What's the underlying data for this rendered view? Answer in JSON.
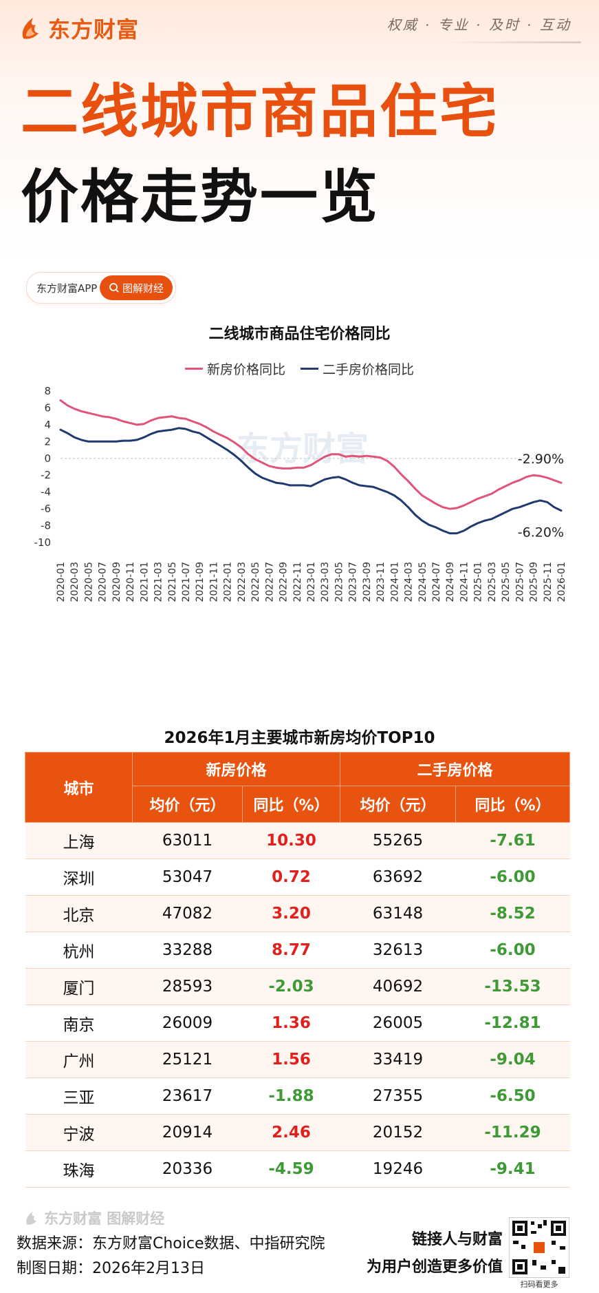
{
  "brand": {
    "name": "东方财富",
    "slogan": "权威 · 专业 · 及时 · 互动"
  },
  "title": {
    "line1": "二线城市商品住宅",
    "line2": "价格走势一览"
  },
  "pill": {
    "app": "东方财富APP",
    "tag": "图解财经"
  },
  "watermark": "东方财富",
  "chart_data": {
    "type": "line",
    "title": "二线城市商品住宅价格同比",
    "x": [
      "2020-01",
      "2020-02",
      "2020-03",
      "2020-04",
      "2020-05",
      "2020-06",
      "2020-07",
      "2020-08",
      "2020-09",
      "2020-10",
      "2020-11",
      "2020-12",
      "2021-01",
      "2021-02",
      "2021-03",
      "2021-04",
      "2021-05",
      "2021-06",
      "2021-07",
      "2021-08",
      "2021-09",
      "2021-10",
      "2021-11",
      "2021-12",
      "2022-01",
      "2022-02",
      "2022-03",
      "2022-04",
      "2022-05",
      "2022-06",
      "2022-07",
      "2022-08",
      "2022-09",
      "2022-10",
      "2022-11",
      "2022-12",
      "2023-01",
      "2023-02",
      "2023-03",
      "2023-04",
      "2023-05",
      "2023-06",
      "2023-07",
      "2023-08",
      "2023-09",
      "2023-10",
      "2023-11",
      "2023-12",
      "2024-01",
      "2024-02",
      "2024-03",
      "2024-04",
      "2024-05",
      "2024-06",
      "2024-07",
      "2024-08",
      "2024-09",
      "2024-10",
      "2024-11",
      "2024-12",
      "2025-01",
      "2025-02",
      "2025-03",
      "2025-04",
      "2025-05",
      "2025-06",
      "2025-07",
      "2025-08",
      "2025-09",
      "2025-10",
      "2025-11",
      "2025-12",
      "2026-01"
    ],
    "tick_labels": [
      "2020-01",
      "2020-03",
      "2020-05",
      "2020-07",
      "2020-09",
      "2020-11",
      "2021-01",
      "2021-03",
      "2021-05",
      "2021-07",
      "2021-09",
      "2021-11",
      "2022-01",
      "2022-03",
      "2022-05",
      "2022-07",
      "2022-09",
      "2022-11",
      "2023-01",
      "2023-03",
      "2023-05",
      "2023-07",
      "2023-09",
      "2023-11",
      "2024-01",
      "2024-03",
      "2024-05",
      "2024-07",
      "2024-09",
      "2024-11",
      "2025-01",
      "2025-03",
      "2025-05",
      "2025-07",
      "2025-09",
      "2025-11",
      "2026-01"
    ],
    "series": [
      {
        "name": "新房价格同比",
        "color": "#e0547a",
        "values": [
          6.9,
          6.3,
          5.9,
          5.6,
          5.4,
          5.2,
          5.0,
          4.9,
          4.7,
          4.4,
          4.2,
          4.0,
          4.1,
          4.5,
          4.8,
          4.9,
          5.0,
          4.8,
          4.7,
          4.4,
          4.1,
          3.7,
          3.2,
          2.8,
          2.4,
          1.9,
          1.3,
          0.5,
          -0.1,
          -0.5,
          -0.9,
          -1.1,
          -1.2,
          -1.2,
          -1.1,
          -1.1,
          -0.8,
          -0.3,
          0.2,
          0.5,
          0.5,
          0.2,
          0.3,
          0.2,
          0.3,
          0.2,
          0.1,
          -0.3,
          -1.0,
          -1.9,
          -2.7,
          -3.6,
          -4.4,
          -4.9,
          -5.4,
          -5.8,
          -6.0,
          -5.9,
          -5.6,
          -5.2,
          -4.8,
          -4.5,
          -4.2,
          -3.7,
          -3.3,
          -2.9,
          -2.6,
          -2.2,
          -2.0,
          -2.1,
          -2.3,
          -2.6,
          -2.9
        ]
      },
      {
        "name": "二手房价格同比",
        "color": "#1f3a6e",
        "values": [
          3.4,
          3.0,
          2.5,
          2.2,
          2.0,
          2.0,
          2.0,
          2.0,
          2.0,
          2.1,
          2.1,
          2.2,
          2.5,
          2.9,
          3.2,
          3.3,
          3.4,
          3.6,
          3.5,
          3.2,
          3.0,
          2.5,
          2.0,
          1.5,
          1.0,
          0.4,
          -0.3,
          -1.1,
          -1.8,
          -2.3,
          -2.6,
          -2.9,
          -3.0,
          -3.2,
          -3.2,
          -3.2,
          -3.3,
          -2.9,
          -2.5,
          -2.3,
          -2.2,
          -2.5,
          -2.9,
          -3.2,
          -3.3,
          -3.4,
          -3.7,
          -4.0,
          -4.4,
          -5.0,
          -5.8,
          -6.7,
          -7.4,
          -7.9,
          -8.2,
          -8.6,
          -8.9,
          -8.9,
          -8.6,
          -8.1,
          -7.7,
          -7.4,
          -7.2,
          -6.8,
          -6.4,
          -6.0,
          -5.8,
          -5.5,
          -5.2,
          -5.0,
          -5.2,
          -5.8,
          -6.2
        ]
      }
    ],
    "end_labels": [
      "-2.90%",
      "-6.20%"
    ],
    "ylim": [
      -10,
      8
    ],
    "yticks": [
      "8",
      "6",
      "4",
      "2",
      "0",
      "-2",
      "-4",
      "-6",
      "-8",
      "-10"
    ],
    "xlabel": "",
    "ylabel": "",
    "legend": "top-center",
    "grid": false
  },
  "table": {
    "title": "2026年1月主要城市新房均价TOP10",
    "headers": {
      "city": "城市",
      "new_group": "新房价格",
      "second_group": "二手房价格",
      "price": "均价（元）",
      "yoy": "同比（%）",
      "price2": "均价（元）",
      "yoy2": "同比（%）"
    },
    "rows": [
      [
        "上海",
        "63011",
        "10.30",
        "55265",
        "-7.61"
      ],
      [
        "深圳",
        "53047",
        "0.72",
        "63692",
        "-6.00"
      ],
      [
        "北京",
        "47082",
        "3.20",
        "63148",
        "-8.52"
      ],
      [
        "杭州",
        "33288",
        "8.77",
        "32613",
        "-6.00"
      ],
      [
        "厦门",
        "28593",
        "-2.03",
        "40692",
        "-13.53"
      ],
      [
        "南京",
        "26009",
        "1.36",
        "26005",
        "-12.81"
      ],
      [
        "广州",
        "25121",
        "1.56",
        "33419",
        "-9.04"
      ],
      [
        "三亚",
        "23617",
        "-1.88",
        "27355",
        "-6.50"
      ],
      [
        "宁波",
        "20914",
        "2.46",
        "20152",
        "-11.29"
      ],
      [
        "珠海",
        "20336",
        "-4.59",
        "19246",
        "-9.41"
      ]
    ]
  },
  "footer": {
    "logo": "东方财富 图解财经",
    "source": "数据来源：东方财富Choice数据、中指研究院",
    "date": "制图日期：2026年2月13日",
    "tagline1": "链接人与财富",
    "tagline2": "为用户创造更多价值",
    "qr_caption": "扫码看更多"
  },
  "colors": {
    "brand": "#e8500f",
    "positive": "#e0201c",
    "negative": "#3d9a35",
    "header_bg": "#e8530f"
  }
}
